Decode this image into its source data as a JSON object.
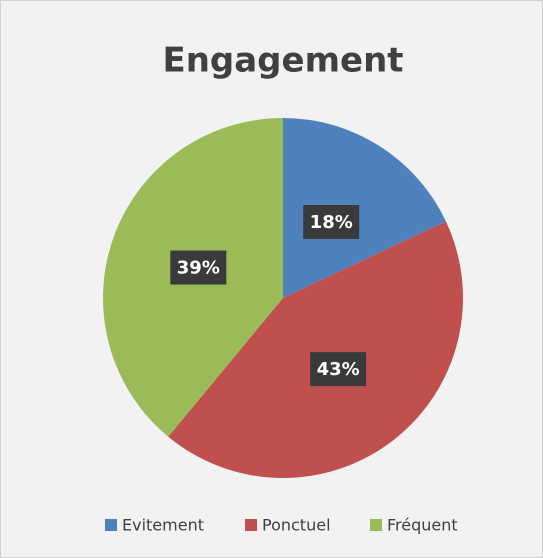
{
  "chart_data": {
    "type": "pie",
    "title": "Engagement",
    "categories": [
      "Evitement",
      "Ponctuel",
      "Fréquent"
    ],
    "values": [
      18,
      43,
      39
    ],
    "value_labels": [
      "18%",
      "43%",
      "39%"
    ],
    "colors": [
      "#4f81bd",
      "#c0504d",
      "#9bbb59"
    ],
    "legend": "bottom"
  }
}
